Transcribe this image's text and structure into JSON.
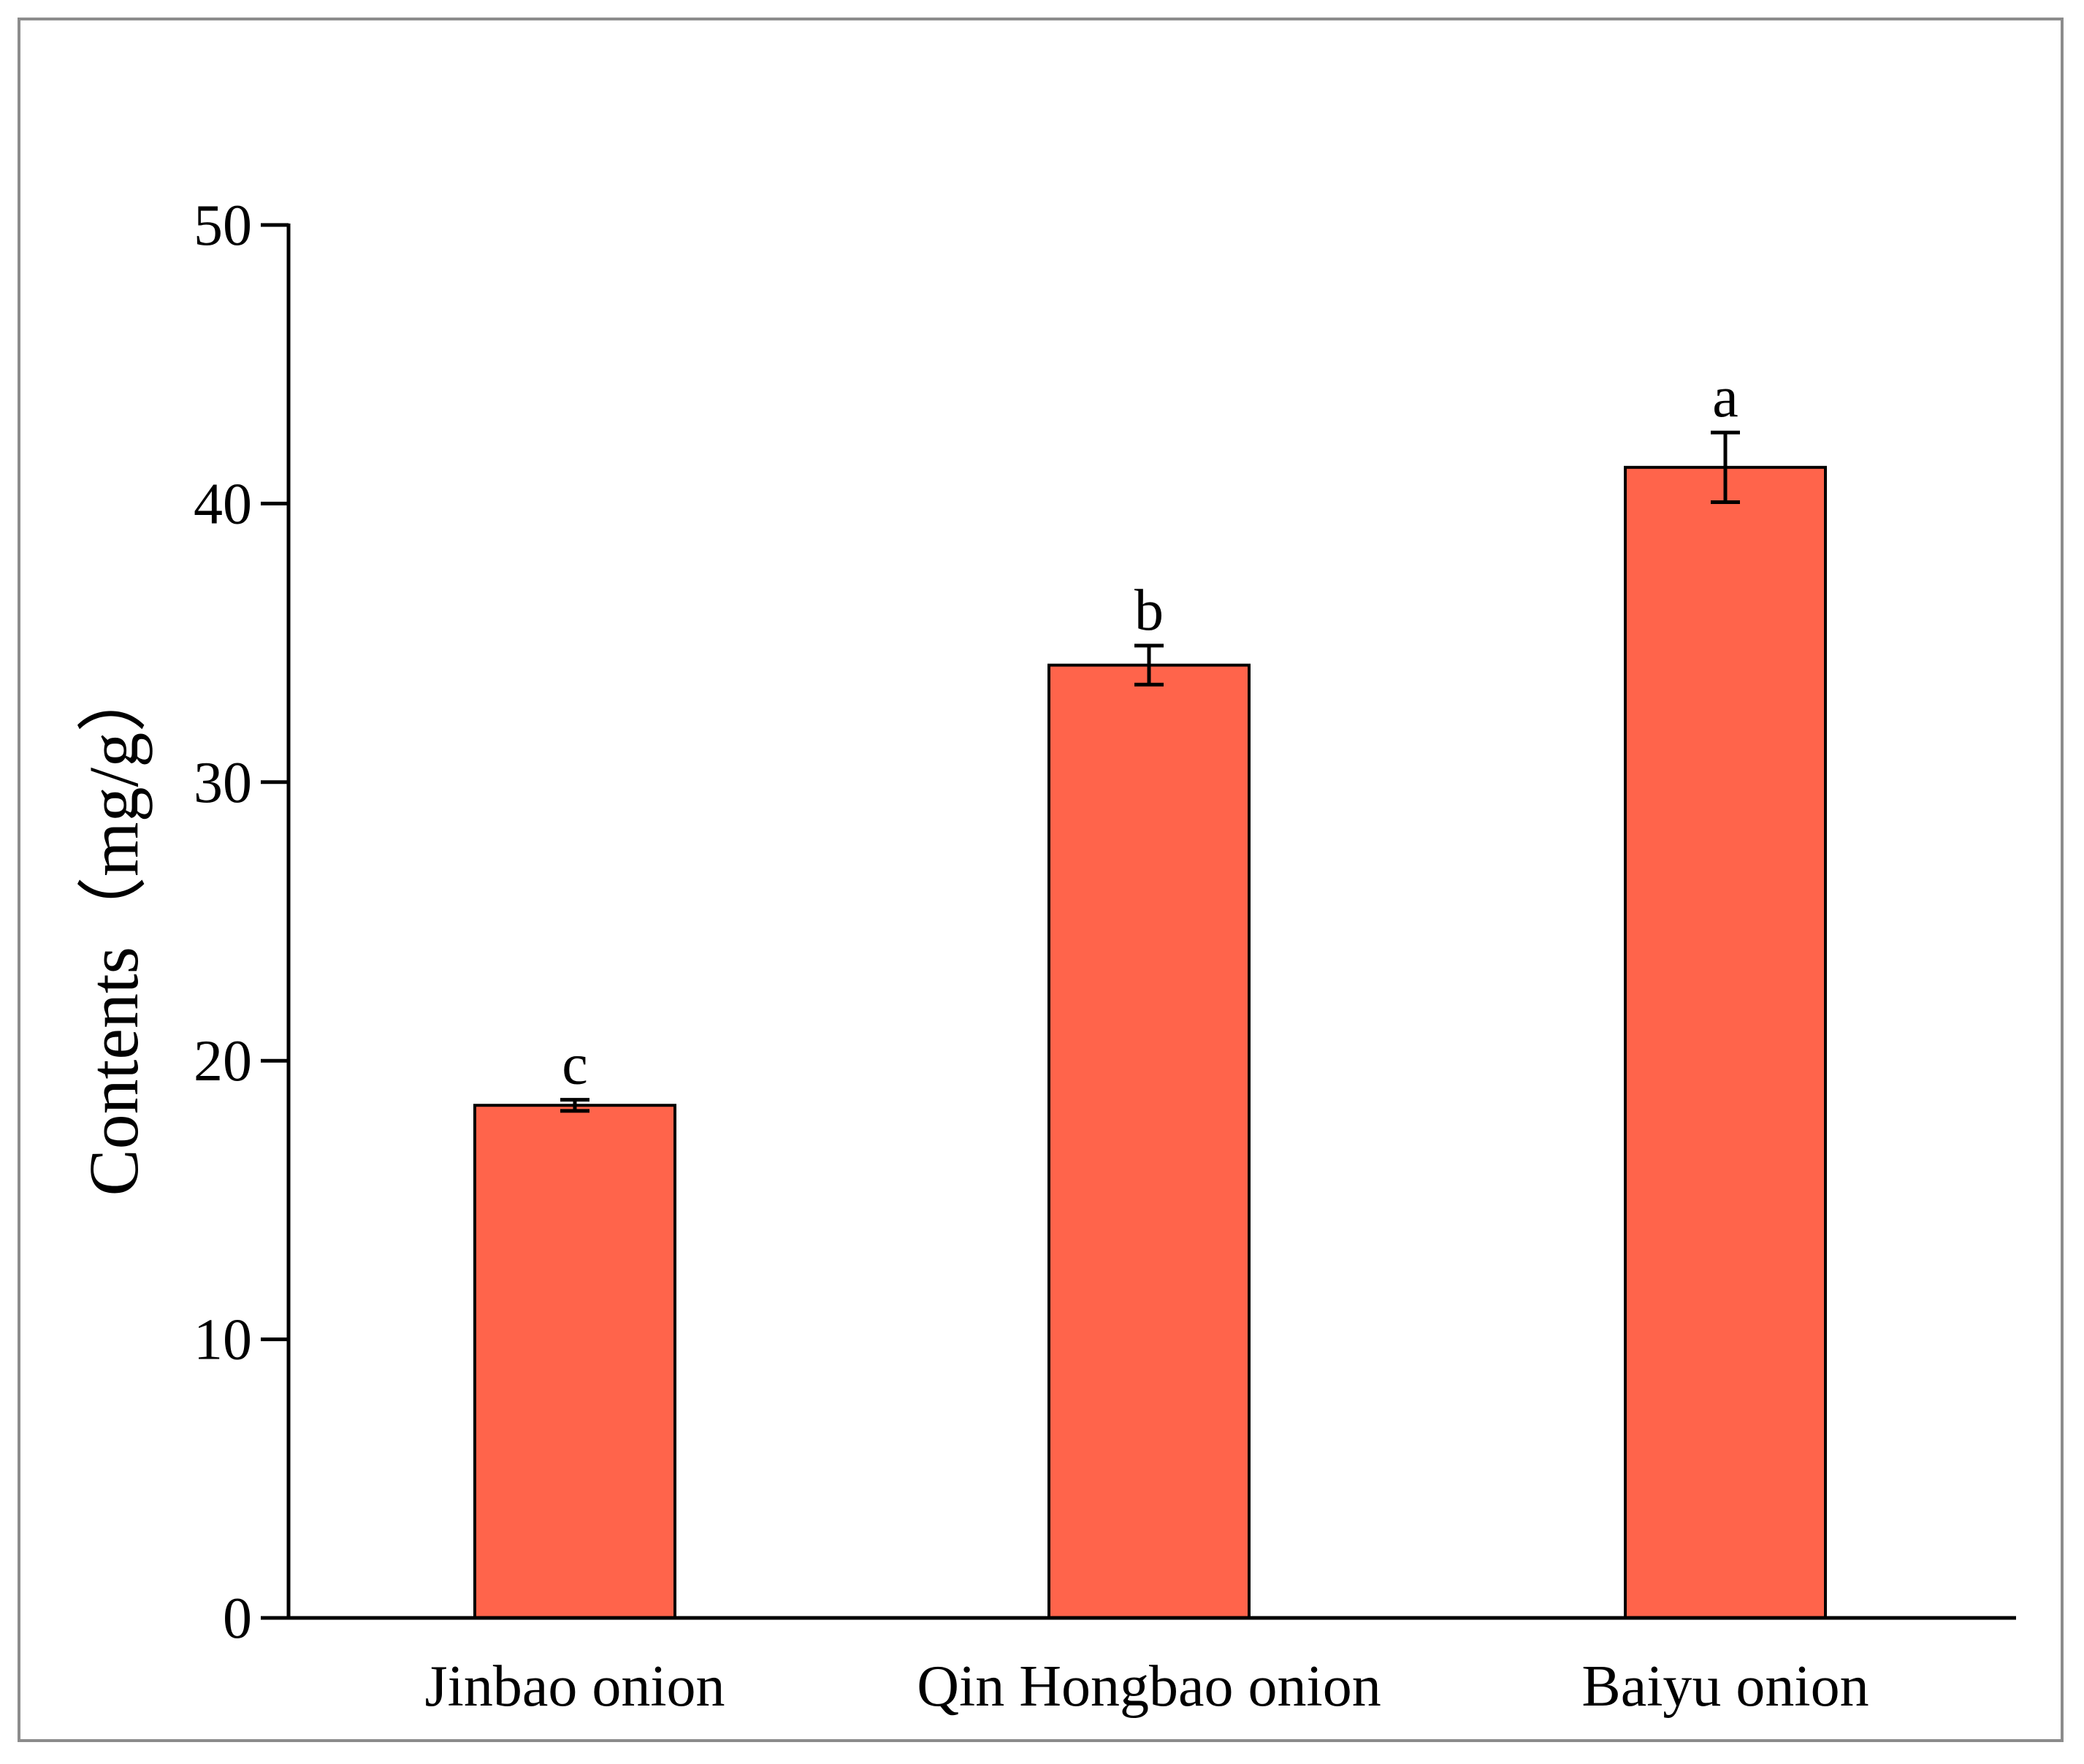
{
  "chart_data": {
    "type": "bar",
    "title": "",
    "xlabel": "",
    "ylabel": "Contents（mg/g）",
    "ylim": [
      0,
      50
    ],
    "yticks": [
      0,
      10,
      20,
      30,
      40,
      50
    ],
    "categories": [
      "Jinbao onion",
      "Qin Hongbao onion",
      "Baiyu onion"
    ],
    "values": [
      18.4,
      34.2,
      41.3
    ],
    "errors": [
      0.2,
      0.7,
      1.25
    ],
    "significance": [
      "c",
      "b",
      "a"
    ],
    "bar_color": "#FF644B",
    "grid": false,
    "legend": "none"
  }
}
